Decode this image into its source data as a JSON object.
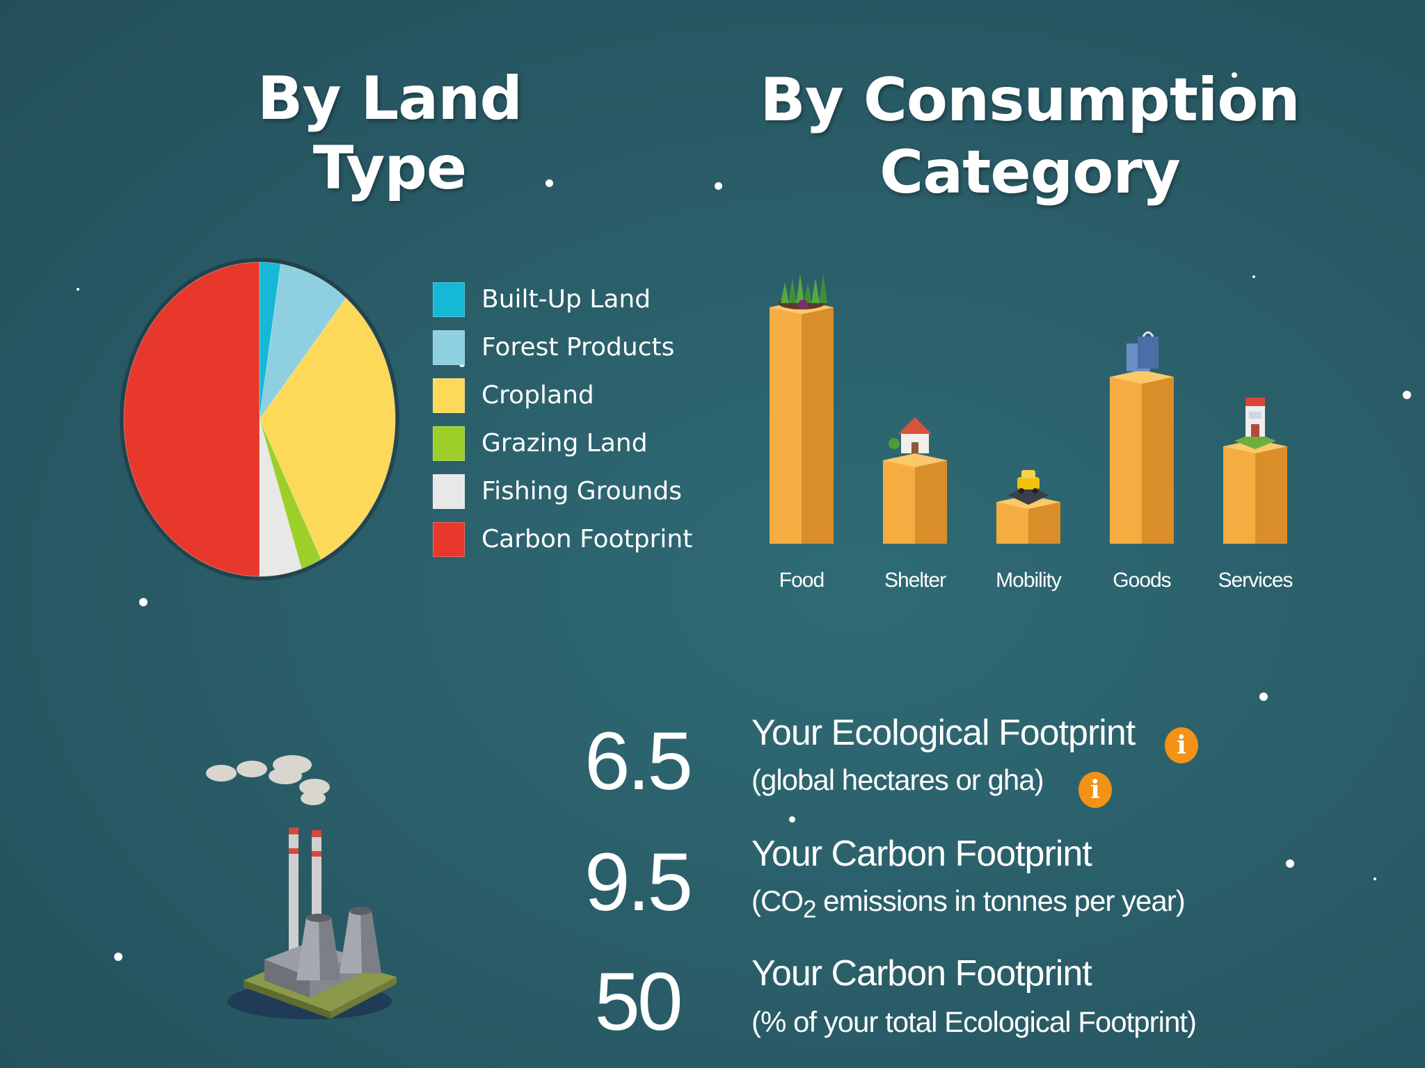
{
  "headings": {
    "land_type": "By Land Type",
    "consumption_line1": "By Consumption",
    "consumption_line2": "Category"
  },
  "land_type_legend": [
    {
      "label": "Built-Up Land",
      "color": "#16b8d8"
    },
    {
      "label": "Forest Products",
      "color": "#8ecfe0"
    },
    {
      "label": "Cropland",
      "color": "#fdd959"
    },
    {
      "label": "Grazing Land",
      "color": "#9dcf2a"
    },
    {
      "label": "Fishing Grounds",
      "color": "#e8e8e8"
    },
    {
      "label": "Carbon Footprint",
      "color": "#e8382b"
    }
  ],
  "consumption_categories": [
    {
      "label": "Food",
      "icon": "plants-icon"
    },
    {
      "label": "Shelter",
      "icon": "house-icon"
    },
    {
      "label": "Mobility",
      "icon": "car-icon"
    },
    {
      "label": "Goods",
      "icon": "shopping-bag-icon"
    },
    {
      "label": "Services",
      "icon": "shop-icon"
    }
  ],
  "chart_data": [
    {
      "type": "pie",
      "title": "By Land Type",
      "categories": [
        "Built-Up Land",
        "Forest Products",
        "Cropland",
        "Grazing Land",
        "Fishing Grounds",
        "Carbon Footprint"
      ],
      "values": [
        2.5,
        8.5,
        31.5,
        2.5,
        5,
        50
      ],
      "colors": [
        "#16b8d8",
        "#8ecfe0",
        "#fdd959",
        "#9dcf2a",
        "#e8e8e8",
        "#e8382b"
      ],
      "legend": "right"
    },
    {
      "type": "bar",
      "title": "By Consumption Category",
      "categories": [
        "Food",
        "Shelter",
        "Mobility",
        "Goods",
        "Services"
      ],
      "values": [
        34,
        12,
        6,
        24,
        14
      ],
      "ylim": [
        0,
        36
      ]
    }
  ],
  "stats": [
    {
      "value": "6.5",
      "title": "Your Ecological Footprint",
      "sub_before": "(global hectares or gha)",
      "sub_sub": "",
      "sub_after": "",
      "title_info": true,
      "sub_info": true
    },
    {
      "value": "9.5",
      "title": "Your Carbon Footprint",
      "sub_before": "(CO",
      "sub_sub": "2",
      "sub_after": " emissions in tonnes per year)",
      "title_info": false,
      "sub_info": false
    },
    {
      "value": "50",
      "title": "Your Carbon Footprint",
      "sub_before": "(% of your total Ecological Footprint)",
      "sub_sub": "",
      "sub_after": "",
      "title_info": false,
      "sub_info": false
    }
  ],
  "info_button_glyph": "i",
  "colors": {
    "bar_front": "#f5ad42",
    "bar_side": "#d98e2a",
    "bar_top": "#fbc86a",
    "info": "#f29216"
  }
}
